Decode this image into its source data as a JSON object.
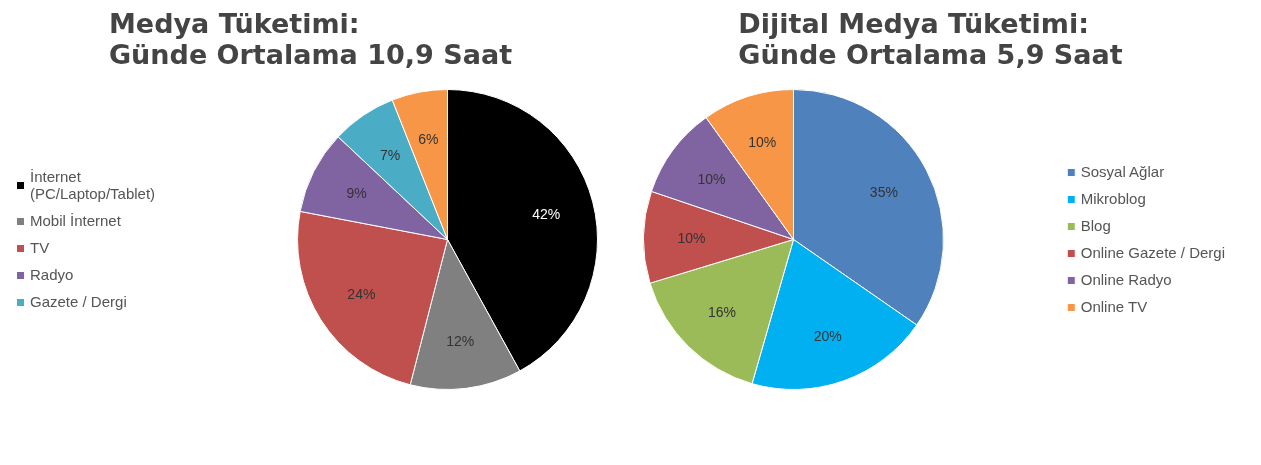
{
  "chart_data": [
    {
      "type": "pie",
      "title": "Medya Tüketimi:\nGünde Ortalama 10,9 Saat",
      "categories": [
        "İnternet\n(PC/Laptop/Tablet)",
        "Mobil İnternet",
        "TV",
        "Radyo",
        "Gazete / Dergi",
        null
      ],
      "values": [
        42,
        12,
        24,
        9,
        7,
        6
      ],
      "colors": [
        "#000000",
        "#808080",
        "#c0504d",
        "#8064a2",
        "#4bacc6",
        "#f79646"
      ],
      "value_labels": [
        "42%",
        "12%",
        "24%",
        "9%",
        "7%",
        "6%"
      ],
      "legend": "left"
    },
    {
      "type": "pie",
      "title": "Dijital Medya Tüketimi:\nGünde Ortalama 5,9 Saat",
      "categories": [
        "Sosyal Ağlar",
        "Mikroblog",
        "Blog",
        "Online Gazete / Dergi",
        "Online Radyo",
        "Online TV"
      ],
      "values": [
        35,
        20,
        16,
        10,
        10,
        10
      ],
      "colors": [
        "#4f81bd",
        "#00b0f0",
        "#9bbb59",
        "#c0504d",
        "#8064a2",
        "#f79646"
      ],
      "value_labels": [
        "35%",
        "20%",
        "16%",
        "10%",
        "10%",
        "10%"
      ],
      "legend": "right"
    }
  ]
}
